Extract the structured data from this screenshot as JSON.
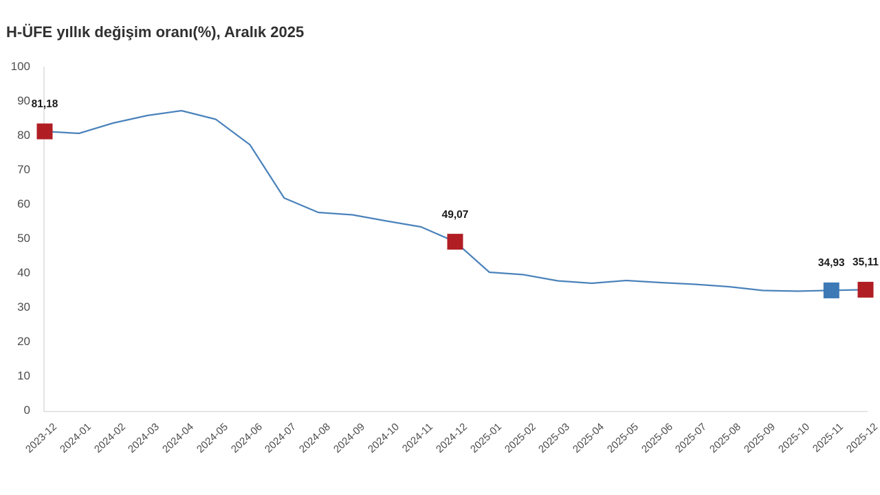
{
  "title": "H-ÜFE yıllık değişim oranı(%), Aralık 2025",
  "chart_data": {
    "type": "line",
    "title": "H-ÜFE yıllık değişim oranı(%), Aralık 2025",
    "xlabel": "",
    "ylabel": "",
    "ylim": [
      0,
      100
    ],
    "yticks": [
      0,
      10,
      20,
      30,
      40,
      50,
      60,
      70,
      80,
      90,
      100
    ],
    "grid": false,
    "legend": "none",
    "x": [
      "2023-12",
      "2024-01",
      "2024-02",
      "2024-03",
      "2024-04",
      "2024-05",
      "2024-06",
      "2024-07",
      "2024-08",
      "2024-09",
      "2024-10",
      "2024-11",
      "2024-12",
      "2025-01",
      "2025-02",
      "2025-03",
      "2025-04",
      "2025-05",
      "2025-06",
      "2025-07",
      "2025-08",
      "2025-09",
      "2025-10",
      "2025-11",
      "2025-12"
    ],
    "series": [
      {
        "name": "H-ÜFE yıllık değişim oranı (%)",
        "values": [
          81.18,
          80.6,
          83.6,
          85.8,
          87.2,
          84.7,
          77.3,
          61.8,
          57.6,
          56.9,
          55.1,
          53.4,
          49.07,
          40.2,
          39.5,
          37.7,
          37.0,
          37.8,
          37.2,
          36.7,
          36.0,
          34.9,
          34.7,
          34.93,
          35.11
        ]
      }
    ],
    "highlighted_points": [
      {
        "x": "2023-12",
        "index": 0,
        "value": 81.18,
        "label": "81,18",
        "marker_color": "#b01e24"
      },
      {
        "x": "2024-12",
        "index": 12,
        "value": 49.07,
        "label": "49,07",
        "marker_color": "#b01e24"
      },
      {
        "x": "2025-11",
        "index": 23,
        "value": 34.93,
        "label": "34,93",
        "marker_color": "#3c79b5"
      },
      {
        "x": "2025-12",
        "index": 24,
        "value": 35.11,
        "label": "35,11",
        "marker_color": "#b01e24"
      }
    ],
    "colors": {
      "line": "#4a82bb",
      "axis_line": "#dcdcdc",
      "tick_text": "#4d4d4d",
      "value_label_text": "#1a1a1a",
      "title_text": "#303030",
      "background": "#ffffff"
    }
  }
}
